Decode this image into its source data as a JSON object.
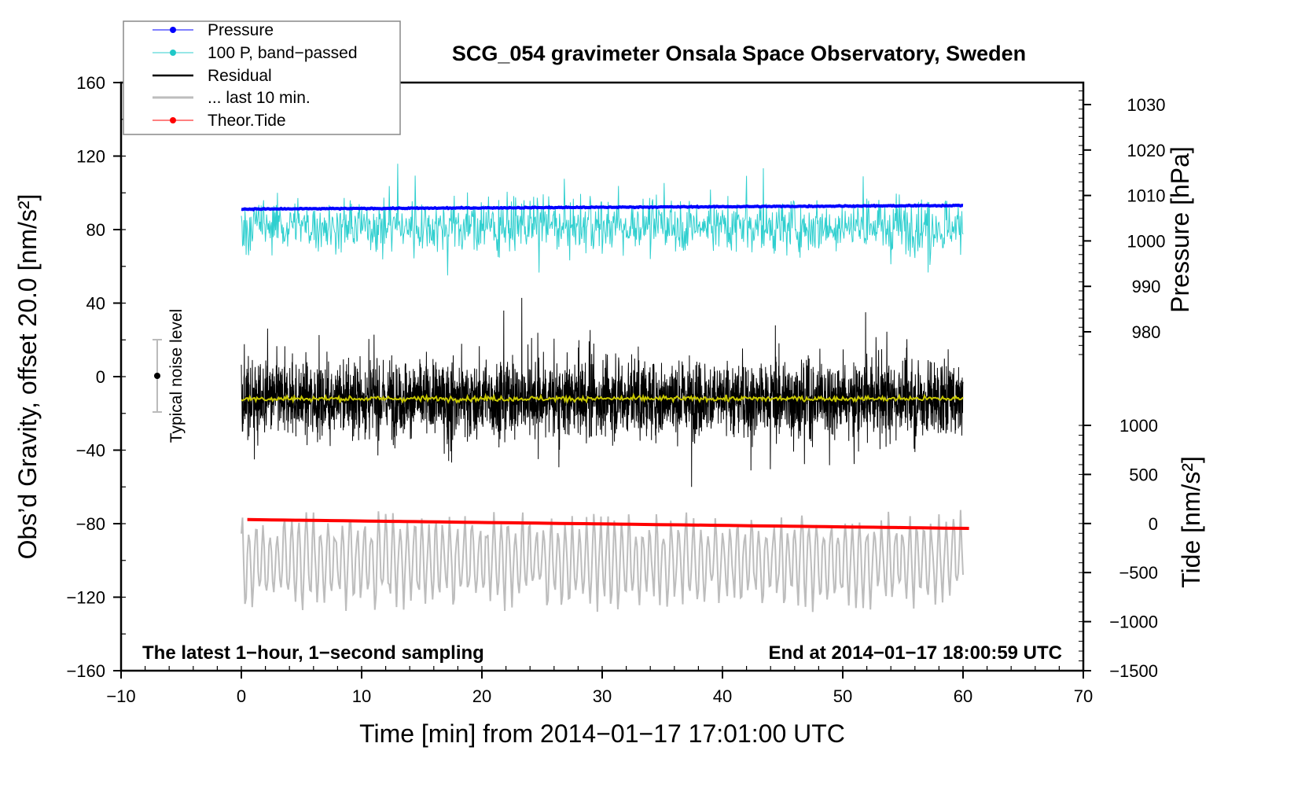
{
  "chart_data": {
    "type": "line",
    "title": "SCG_054 gravimeter Onsala Space Observatory, Sweden",
    "xlabel": "Time [min] from 2014−01−17 17:01:00 UTC",
    "ylabel": "Obs’d Gravity, offset 20.0 [nm/s²]",
    "ylabel_right_top": "Pressure [hPa]",
    "ylabel_right_bottom": "Tide [nm/s²]",
    "xlim": [
      -10,
      70
    ],
    "ylim": [
      -160,
      160
    ],
    "pressure_lim": [
      980,
      1030
    ],
    "tide_lim": [
      -1500,
      1000
    ],
    "x_ticks": [
      "−10",
      "0",
      "10",
      "20",
      "30",
      "40",
      "50",
      "60",
      "70"
    ],
    "x_tick_values": [
      -10,
      0,
      10,
      20,
      30,
      40,
      50,
      60,
      70
    ],
    "y_ticks": [
      "160",
      "120",
      "80",
      "40",
      "0",
      "−40",
      "−80",
      "−120",
      "−160"
    ],
    "y_tick_values": [
      160,
      120,
      80,
      40,
      0,
      -40,
      -80,
      -120,
      -160
    ],
    "pressure_ticks": [
      "1030",
      "1020",
      "1010",
      "1000",
      "990",
      "980"
    ],
    "pressure_tick_values": [
      1030,
      1020,
      1010,
      1000,
      990,
      980
    ],
    "tide_ticks": [
      "1000",
      "500",
      "0",
      "−500",
      "−1000",
      "−1500"
    ],
    "tide_tick_values": [
      1000,
      500,
      0,
      -500,
      -1000,
      -1500
    ],
    "annotation_left": "The latest 1−hour, 1−second sampling",
    "annotation_right": "End at 2014−01−17 18:00:59 UTC",
    "noise_label": "Typical noise level",
    "noise_bar": {
      "x": -7,
      "center": 0,
      "half_range": 20
    },
    "legend": {
      "placement": "top-left",
      "entries": [
        "Pressure",
        "100 P, band−passed",
        "Residual",
        "... last 10 min.",
        "Theor.Tide"
      ]
    },
    "series": [
      {
        "name": "Pressure",
        "axis": "pressure",
        "color": "#0000ff",
        "x_range": [
          0,
          60
        ],
        "start": 1007.0,
        "end": 1007.8,
        "noise": 0.15
      },
      {
        "name": "100 P, band−passed",
        "axis": "gravity",
        "color": "#2fcfcf",
        "x_range": [
          0,
          60
        ],
        "center": 82,
        "noise_amp": 10,
        "spike_min": 24,
        "spike_max": 118
      },
      {
        "name": "Residual",
        "axis": "gravity",
        "color": "#000000",
        "x_range": [
          0,
          60
        ],
        "center": -12,
        "noise_amp": 14,
        "min": -60,
        "max": 44
      },
      {
        "name": "Residual smoothed",
        "axis": "gravity",
        "color": "#c8c800",
        "x_range": [
          0,
          60
        ],
        "center": -12,
        "noise_amp": 1
      },
      {
        "name": "... last 10 min.",
        "axis": "gravity",
        "color": "#bdbdbd",
        "x_range": [
          0,
          60
        ],
        "center": -100,
        "noise_amp": 22,
        "min": -135,
        "max": -55
      },
      {
        "name": "Theor.Tide",
        "axis": "tide",
        "color": "#ff0000",
        "x_range": [
          0.5,
          60.5
        ],
        "start": 40,
        "end": -50
      }
    ]
  },
  "colors": {
    "pressure": "#0000ff",
    "bandpass": "#2fcfcf",
    "residual": "#000000",
    "last10": "#bdbdbd",
    "tide": "#ff0000",
    "smooth": "#c8c800"
  }
}
